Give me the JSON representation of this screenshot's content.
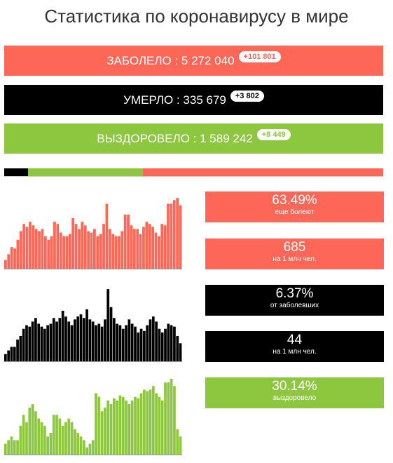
{
  "title": "Статистика по коронавирусу в мире",
  "colors": {
    "infected": "#fd6758",
    "deaths": "#000000",
    "recovered": "#8dc63f"
  },
  "totals": [
    {
      "label": "ЗАБОЛЕЛО : 5 272 040",
      "delta": "+101 801"
    },
    {
      "label": "УМЕРЛО : 335 679",
      "delta": "+3 802"
    },
    {
      "label": "ВЫЗДОРОВЕЛО : 1 589 242",
      "delta": "+8 449"
    }
  ],
  "ratio_bar": {
    "deaths": 6.37,
    "recovered": 30.14,
    "active": 63.49
  },
  "stats": [
    {
      "value": "63.49%",
      "caption": "еще болеют"
    },
    {
      "value": "685",
      "caption": "на 1 млн чел."
    },
    {
      "value": "6.37%",
      "caption": "от заболевших"
    },
    {
      "value": "44",
      "caption": "на 1 млн чел."
    },
    {
      "value": "30.14%",
      "caption": "выздоровело"
    }
  ],
  "chart_data": [
    {
      "type": "bar",
      "name": "infected-daily",
      "values": [
        12,
        20,
        30,
        28,
        40,
        52,
        62,
        58,
        65,
        60,
        55,
        52,
        55,
        45,
        40,
        45,
        65,
        62,
        50,
        45,
        45,
        48,
        70,
        62,
        55,
        65,
        60,
        52,
        50,
        55,
        45,
        48,
        62,
        90,
        55,
        48,
        45,
        45,
        52,
        75,
        75,
        60,
        55,
        55,
        48,
        58,
        65,
        62,
        58,
        50,
        45,
        62,
        60,
        90,
        90,
        95,
        98,
        88
      ]
    },
    {
      "type": "bar",
      "name": "deaths-daily",
      "values": [
        10,
        15,
        20,
        20,
        30,
        35,
        45,
        50,
        48,
        55,
        60,
        52,
        48,
        45,
        50,
        52,
        60,
        55,
        60,
        70,
        62,
        55,
        50,
        58,
        62,
        65,
        60,
        72,
        58,
        55,
        50,
        52,
        48,
        58,
        100,
        75,
        60,
        52,
        50,
        45,
        50,
        58,
        52,
        48,
        40,
        45,
        42,
        50,
        58,
        62,
        55,
        45,
        40,
        45,
        52,
        50,
        48,
        35,
        25
      ]
    },
    {
      "type": "bar",
      "name": "recovered-daily",
      "values": [
        15,
        20,
        25,
        20,
        20,
        40,
        55,
        45,
        65,
        70,
        60,
        50,
        45,
        40,
        25,
        30,
        55,
        55,
        50,
        40,
        45,
        50,
        45,
        35,
        30,
        25,
        20,
        10,
        15,
        20,
        85,
        80,
        60,
        65,
        75,
        70,
        78,
        75,
        82,
        80,
        75,
        70,
        75,
        80,
        78,
        85,
        90,
        88,
        90,
        95,
        85,
        80,
        75,
        100,
        100,
        105,
        95,
        35,
        25
      ]
    }
  ]
}
